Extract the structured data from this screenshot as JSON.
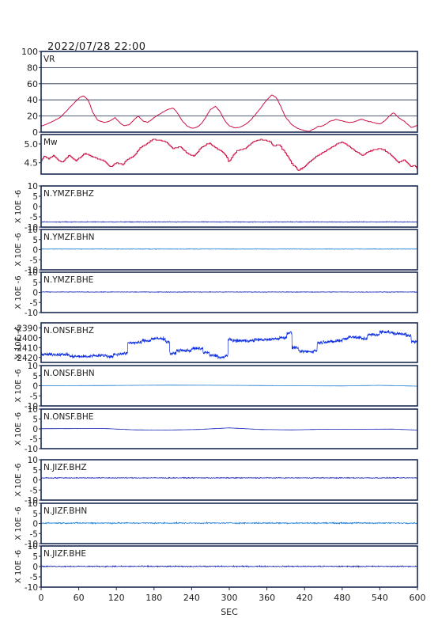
{
  "figure": {
    "timestamp": "2022/07/28 22:00",
    "xlabel": "SEC",
    "x_ticks": [
      "0",
      "60",
      "120",
      "180",
      "240",
      "300",
      "360",
      "420",
      "480",
      "540",
      "600"
    ],
    "x_range": [
      0,
      600
    ]
  },
  "colors": {
    "frame": "#1a2a50",
    "vr": "#cc1144",
    "mw": "#cc1144",
    "trace_dark": "#1020b0",
    "trace_light": "#1a7ad0",
    "trace_bhz_onsf": "#1030e0",
    "text": "#202020"
  },
  "chart_data": [
    {
      "type": "line",
      "id": "vr",
      "label": "VR",
      "ylim": [
        0,
        100
      ],
      "y_ticks": [
        "0",
        "20",
        "40",
        "60",
        "80",
        "100"
      ],
      "grid": true,
      "x": [
        0,
        15,
        30,
        45,
        55,
        62,
        68,
        75,
        82,
        90,
        100,
        110,
        118,
        125,
        132,
        140,
        148,
        155,
        162,
        170,
        180,
        188,
        195,
        202,
        210,
        218,
        225,
        232,
        240,
        248,
        255,
        262,
        270,
        278,
        285,
        292,
        300,
        310,
        320,
        330,
        340,
        350,
        360,
        368,
        375,
        382,
        390,
        400,
        410,
        420,
        428,
        435,
        442,
        450,
        460,
        470,
        480,
        490,
        500,
        510,
        520,
        530,
        540,
        548,
        555,
        562,
        570,
        580,
        590,
        600
      ],
      "y": [
        7,
        12,
        18,
        30,
        38,
        43,
        45,
        40,
        25,
        15,
        12,
        14,
        18,
        12,
        8,
        9,
        15,
        20,
        14,
        12,
        18,
        22,
        25,
        28,
        30,
        23,
        14,
        8,
        5,
        6,
        10,
        18,
        28,
        32,
        26,
        15,
        8,
        5,
        7,
        12,
        20,
        30,
        40,
        46,
        43,
        32,
        18,
        9,
        4,
        2,
        1,
        4,
        7,
        8,
        13,
        16,
        14,
        12,
        13,
        16,
        14,
        12,
        10,
        14,
        20,
        24,
        18,
        13,
        6,
        8
      ]
    },
    {
      "type": "line",
      "id": "mw",
      "label": "Mw",
      "ylim": [
        4.2,
        5.25
      ],
      "y_ticks": [
        "4.5",
        "5.0"
      ],
      "x": [
        0,
        5,
        12,
        20,
        28,
        35,
        45,
        55,
        70,
        88,
        100,
        110,
        120,
        130,
        138,
        148,
        158,
        168,
        178,
        190,
        200,
        210,
        222,
        232,
        244,
        256,
        268,
        280,
        290,
        300,
        312,
        325,
        338,
        350,
        362,
        370,
        380,
        392,
        400,
        410,
        420,
        430,
        440,
        450,
        462,
        472,
        480,
        490,
        500,
        512,
        525,
        540,
        552,
        560,
        570,
        578,
        585,
        590,
        595,
        600
      ],
      "y": [
        4.55,
        4.68,
        4.6,
        4.7,
        4.55,
        4.52,
        4.7,
        4.55,
        4.75,
        4.62,
        4.55,
        4.38,
        4.5,
        4.45,
        4.6,
        4.68,
        4.9,
        5.0,
        5.12,
        5.1,
        5.05,
        4.88,
        4.93,
        4.75,
        4.68,
        4.92,
        5.02,
        4.88,
        4.78,
        4.55,
        4.82,
        4.88,
        5.05,
        5.12,
        5.08,
        4.95,
        4.98,
        4.7,
        4.48,
        4.3,
        4.4,
        4.55,
        4.68,
        4.78,
        4.9,
        5.0,
        5.05,
        4.95,
        4.82,
        4.7,
        4.82,
        4.88,
        4.78,
        4.68,
        4.5,
        4.58,
        4.47,
        4.38,
        4.45,
        4.3
      ]
    }
  ],
  "traces": [
    {
      "id": "ymzf-bhz",
      "label": "N.YMZF.BHZ",
      "ylabel": "X 10E -6",
      "y_ticks": [
        "10",
        "5",
        "0",
        "-5",
        "-10"
      ],
      "ylim": [
        -10,
        10
      ],
      "color_key": "trace_dark",
      "kind": "flat",
      "offset": -7.5,
      "noise": 0.25
    },
    {
      "id": "ymzf-bhn",
      "label": "N.YMZF.BHN",
      "ylabel": "X 10E -6",
      "y_ticks": [
        "10",
        "5",
        "0",
        "-5",
        "-10"
      ],
      "ylim": [
        -10,
        10
      ],
      "color_key": "trace_light",
      "kind": "flat",
      "offset": 0.3,
      "noise": 0.2
    },
    {
      "id": "ymzf-bhe",
      "label": "N.YMZF.BHE",
      "ylabel": "X 10E -6",
      "y_ticks": [
        "10",
        "5",
        "0",
        "-5",
        "-10"
      ],
      "ylim": [
        -10,
        10
      ],
      "color_key": "trace_dark",
      "kind": "flat",
      "offset": 0.2,
      "noise": 0.2
    },
    {
      "id": "onsf-bhz",
      "label": "N.ONSF.BHZ",
      "ylabel": "X 10E -6",
      "y_ticks": [
        "-2390",
        "-2400",
        "-2410",
        "-2420"
      ],
      "ylim": [
        -2425,
        -2385
      ],
      "color_key": "trace_bhz_onsf",
      "kind": "steps",
      "noise": 2.5,
      "steps_x": [
        0,
        45,
        80,
        105,
        115,
        125,
        138,
        160,
        175,
        198,
        205,
        215,
        240,
        258,
        268,
        282,
        293,
        298,
        305,
        340,
        368,
        380,
        392,
        400,
        410,
        435,
        440,
        450,
        470,
        480,
        490,
        500,
        510,
        520,
        540,
        555,
        562,
        570,
        582,
        590,
        600
      ],
      "steps_y": [
        -2417,
        -2419,
        -2418,
        -2419,
        -2417,
        -2416,
        -2405,
        -2403,
        -2401,
        -2404,
        -2416,
        -2413,
        -2411,
        -2415,
        -2418,
        -2420,
        -2418,
        -2402,
        -2403,
        -2402,
        -2401,
        -2400,
        -2395,
        -2410,
        -2414,
        -2413,
        -2405,
        -2404,
        -2403,
        -2401,
        -2399,
        -2400,
        -2401,
        -2397,
        -2394,
        -2395,
        -2396,
        -2396,
        -2398,
        -2404,
        -2403
      ]
    },
    {
      "id": "onsf-bhn",
      "label": "N.ONSF.BHN",
      "ylabel": "X 10E -6",
      "y_ticks": [
        "10",
        "5",
        "0",
        "-5",
        "-10"
      ],
      "ylim": [
        -10,
        10
      ],
      "color_key": "trace_light",
      "kind": "smooth",
      "noise": 0.05,
      "x": [
        0,
        100,
        200,
        300,
        400,
        480,
        540,
        600
      ],
      "y": [
        0,
        0.1,
        0.3,
        0.2,
        0,
        -0.1,
        0.2,
        -0.2
      ]
    },
    {
      "id": "onsf-bhe",
      "label": "N.ONSF.BHE",
      "ylabel": "X 10E -6",
      "y_ticks": [
        "10",
        "5",
        "0",
        "-5",
        "-10"
      ],
      "ylim": [
        -10,
        10
      ],
      "color_key": "trace_dark",
      "kind": "smooth",
      "noise": 0.05,
      "x": [
        0,
        100,
        150,
        200,
        250,
        300,
        350,
        400,
        450,
        500,
        560,
        600
      ],
      "y": [
        0.1,
        0.2,
        -0.5,
        -0.6,
        -0.3,
        0.5,
        -0.3,
        -0.5,
        -0.2,
        -0.2,
        -0.1,
        -0.6
      ]
    },
    {
      "id": "jizf-bhz",
      "label": "N.JIZF.BHZ",
      "ylabel": "X 10E -6",
      "y_ticks": [
        "10",
        "5",
        "0",
        "-5",
        "-10"
      ],
      "ylim": [
        -10,
        10
      ],
      "color_key": "trace_dark",
      "kind": "flat",
      "offset": 1.0,
      "noise": 0.3
    },
    {
      "id": "jizf-bhn",
      "label": "N.JIZF.BHN",
      "ylabel": "X 10E -6",
      "y_ticks": [
        "10",
        "5",
        "0",
        "-5",
        "-10"
      ],
      "ylim": [
        -10,
        10
      ],
      "color_key": "trace_light",
      "kind": "flat",
      "offset": 0.2,
      "noise": 0.45
    },
    {
      "id": "jizf-bhe",
      "label": "N.JIZF.BHE",
      "ylabel": "X 10E -6",
      "y_ticks": [
        "10",
        "5",
        "0",
        "-5",
        "-10"
      ],
      "ylim": [
        -10,
        10
      ],
      "color_key": "trace_dark",
      "kind": "flat",
      "offset": 0.1,
      "noise": 0.4
    }
  ]
}
